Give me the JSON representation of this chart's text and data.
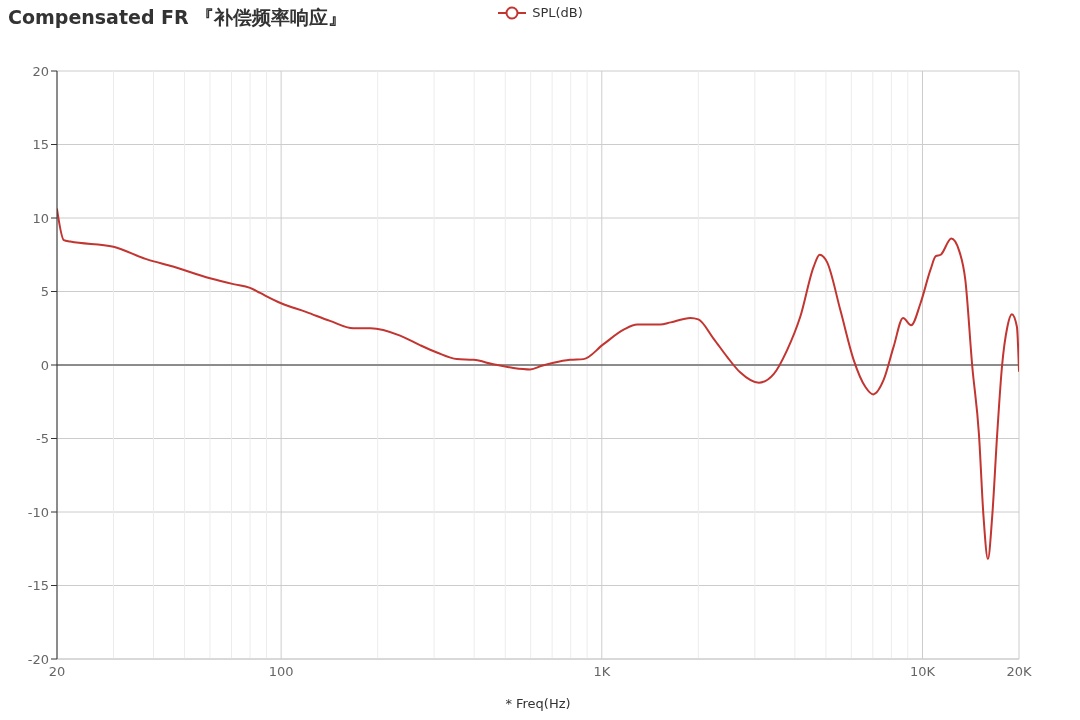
{
  "chart_data": {
    "type": "line",
    "title": "Compensated FR 『补偿频率响应』",
    "xlabel": "* Freq(Hz)",
    "x": [
      20,
      21,
      22,
      30,
      38,
      46,
      60,
      71,
      80,
      86,
      100,
      120,
      142,
      168,
      190,
      235,
      271,
      306,
      353,
      398,
      459,
      530,
      598,
      650,
      707,
      796,
      877,
      1010,
      1170,
      1290,
      1520,
      1640,
      1890,
      2000,
      2230,
      2460,
      2700,
      3090,
      3440,
      3780,
      4160,
      4580,
      4780,
      5040,
      5550,
      6100,
      6640,
      7020,
      7570,
      8130,
      8700,
      9220,
      9860,
      10600,
      11000,
      11400,
      12300,
      13000,
      13600,
      14300,
      15000,
      15500,
      16000,
      16500,
      17100,
      17700,
      18400,
      19000,
      19700,
      20000
    ],
    "series": [
      {
        "name": "SPL(dB)",
        "color": "#c23531",
        "values": [
          10.6,
          8.5,
          8.4,
          8.05,
          7.2,
          6.7,
          5.9,
          5.5,
          5.25,
          4.9,
          4.2,
          3.6,
          3.0,
          2.5,
          2.5,
          2.0,
          1.35,
          0.85,
          0.4,
          0.35,
          0.05,
          -0.2,
          -0.3,
          -0.05,
          0.15,
          0.35,
          0.4,
          1.4,
          2.4,
          2.75,
          2.75,
          2.9,
          3.2,
          3.1,
          1.8,
          0.55,
          -0.5,
          -1.2,
          -0.6,
          1.0,
          3.3,
          6.7,
          7.5,
          7.0,
          3.7,
          0.35,
          -1.5,
          -2.0,
          -1.0,
          1.25,
          3.2,
          2.7,
          4.2,
          6.5,
          7.4,
          7.5,
          8.6,
          7.8,
          5.8,
          -0.1,
          -4.7,
          -10.3,
          -13.2,
          -10.3,
          -4.7,
          -0.1,
          2.6,
          3.45,
          2.6,
          -0.4
        ]
      }
    ],
    "xlim": [
      20,
      20000
    ],
    "xticks": [
      20,
      {
        "value": 30,
        "label": null
      },
      {
        "value": 40,
        "label": null
      },
      {
        "value": 50,
        "label": null
      },
      {
        "value": 60,
        "label": null
      },
      {
        "value": 70,
        "label": null
      },
      {
        "value": 80,
        "label": null
      },
      {
        "value": 90,
        "label": null
      },
      100,
      {
        "value": 200,
        "label": null
      },
      {
        "value": 300,
        "label": null
      },
      {
        "value": 400,
        "label": null
      },
      {
        "value": 500,
        "label": null
      },
      {
        "value": 600,
        "label": null
      },
      {
        "value": 700,
        "label": null
      },
      {
        "value": 800,
        "label": null
      },
      {
        "value": 900,
        "label": null
      },
      {
        "value": 1000,
        "label": "1K"
      },
      {
        "value": 2000,
        "label": null
      },
      {
        "value": 3000,
        "label": null
      },
      {
        "value": 4000,
        "label": null
      },
      {
        "value": 5000,
        "label": null
      },
      {
        "value": 6000,
        "label": null
      },
      {
        "value": 7000,
        "label": null
      },
      {
        "value": 8000,
        "label": null
      },
      {
        "value": 9000,
        "label": null
      },
      {
        "value": 10000,
        "label": "10K"
      },
      {
        "value": 20000,
        "label": "20K"
      }
    ],
    "ylim": [
      -20,
      20
    ],
    "yticks": [
      -20,
      -15,
      -10,
      -5,
      0,
      5,
      10,
      15,
      20
    ],
    "log": "x",
    "grid": true,
    "legend": "top",
    "marker": "none",
    "line_style": "solid",
    "ref_lines": [
      {
        "axis": "y",
        "value": 0,
        "color": "#333333"
      }
    ]
  }
}
